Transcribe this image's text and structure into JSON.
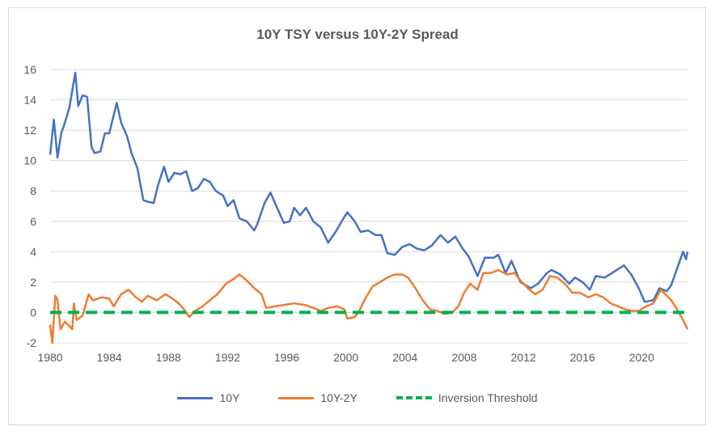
{
  "chart_data": {
    "type": "line",
    "title": "10Y TSY versus 10Y-2Y Spread",
    "xlabel": "",
    "ylabel": "",
    "xlim": [
      1980,
      2023.1
    ],
    "ylim": [
      -2,
      16
    ],
    "yticks": [
      "16",
      "14",
      "12",
      "10",
      "8",
      "6",
      "4",
      "2",
      "0",
      "-2"
    ],
    "xticks": [
      "1980",
      "1984",
      "1988",
      "1992",
      "1996",
      "2000",
      "2004",
      "2008",
      "2012",
      "2016",
      "2020"
    ],
    "grid": true,
    "legend_position": "bottom",
    "series": [
      {
        "name": "10Y",
        "color": "#4472c4",
        "x": [
          1980.0,
          1980.25,
          1980.5,
          1980.75,
          1981.0,
          1981.3,
          1981.7,
          1981.9,
          1982.2,
          1982.5,
          1982.8,
          1983.0,
          1983.4,
          1983.7,
          1984.0,
          1984.5,
          1984.8,
          1985.2,
          1985.5,
          1985.9,
          1986.3,
          1986.6,
          1987.0,
          1987.3,
          1987.7,
          1988.0,
          1988.4,
          1988.8,
          1989.2,
          1989.6,
          1990.0,
          1990.4,
          1990.8,
          1991.2,
          1991.7,
          1992.0,
          1992.4,
          1992.8,
          1993.3,
          1993.8,
          1994.0,
          1994.5,
          1994.9,
          1995.3,
          1995.8,
          1996.2,
          1996.5,
          1996.9,
          1997.3,
          1997.8,
          1998.3,
          1998.8,
          1999.3,
          1999.9,
          2000.1,
          2000.6,
          2001.0,
          2001.5,
          2002.0,
          2002.4,
          2002.8,
          2003.3,
          2003.8,
          2004.3,
          2004.8,
          2005.3,
          2005.8,
          2006.4,
          2006.9,
          2007.4,
          2007.9,
          2008.3,
          2008.9,
          2009.4,
          2010.0,
          2010.3,
          2010.8,
          2011.2,
          2011.8,
          2012.5,
          2013.0,
          2013.6,
          2013.9,
          2014.5,
          2015.1,
          2015.5,
          2016.0,
          2016.5,
          2016.9,
          2017.5,
          2018.0,
          2018.8,
          2019.3,
          2019.8,
          2020.2,
          2020.8,
          2021.2,
          2021.7,
          2022.0,
          2022.4,
          2022.8,
          2023.0,
          2023.1
        ],
        "values": [
          10.4,
          12.7,
          10.2,
          11.8,
          12.5,
          13.5,
          15.8,
          13.6,
          14.3,
          14.2,
          10.9,
          10.5,
          10.6,
          11.8,
          11.8,
          13.8,
          12.5,
          11.6,
          10.5,
          9.5,
          7.4,
          7.3,
          7.2,
          8.4,
          9.6,
          8.6,
          9.2,
          9.1,
          9.3,
          8.0,
          8.2,
          8.8,
          8.6,
          8.0,
          7.7,
          7.0,
          7.4,
          6.2,
          6.0,
          5.4,
          5.8,
          7.2,
          7.9,
          7.0,
          5.9,
          6.0,
          6.9,
          6.4,
          6.9,
          6.0,
          5.6,
          4.6,
          5.3,
          6.3,
          6.6,
          6.0,
          5.3,
          5.4,
          5.1,
          5.1,
          3.9,
          3.8,
          4.3,
          4.5,
          4.2,
          4.1,
          4.4,
          5.1,
          4.6,
          5.0,
          4.2,
          3.7,
          2.4,
          3.6,
          3.6,
          3.8,
          2.6,
          3.4,
          2.0,
          1.6,
          1.9,
          2.6,
          2.8,
          2.5,
          1.9,
          2.3,
          2.0,
          1.5,
          2.4,
          2.3,
          2.6,
          3.1,
          2.5,
          1.6,
          0.7,
          0.8,
          1.6,
          1.4,
          1.8,
          2.9,
          4.0,
          3.5,
          4.0
        ]
      },
      {
        "name": "10Y-2Y",
        "color": "#ed7d31",
        "x": [
          1980.0,
          1980.15,
          1980.35,
          1980.5,
          1980.7,
          1981.0,
          1981.3,
          1981.5,
          1981.6,
          1981.8,
          1982.2,
          1982.6,
          1982.9,
          1983.5,
          1984.0,
          1984.3,
          1984.8,
          1985.3,
          1985.8,
          1986.2,
          1986.6,
          1987.2,
          1987.8,
          1988.3,
          1988.8,
          1989.2,
          1989.4,
          1989.8,
          1990.3,
          1990.8,
          1991.3,
          1991.9,
          1992.4,
          1992.8,
          1993.3,
          1993.8,
          1994.3,
          1994.6,
          1995.2,
          1995.8,
          1996.5,
          1997.2,
          1997.8,
          1998.3,
          1998.8,
          1999.4,
          1999.9,
          2000.1,
          2000.6,
          2000.9,
          2001.3,
          2001.8,
          2002.3,
          2002.8,
          2003.3,
          2003.8,
          2004.2,
          2004.7,
          2005.2,
          2005.7,
          2006.2,
          2006.7,
          2007.2,
          2007.6,
          2008.0,
          2008.4,
          2008.9,
          2009.3,
          2009.8,
          2010.3,
          2010.9,
          2011.4,
          2011.9,
          2012.3,
          2012.8,
          2013.3,
          2013.8,
          2014.3,
          2014.9,
          2015.3,
          2015.8,
          2016.4,
          2016.9,
          2017.4,
          2017.9,
          2018.4,
          2018.9,
          2019.4,
          2019.8,
          2020.3,
          2020.8,
          2021.3,
          2021.6,
          2022.0,
          2022.4,
          2022.8,
          2023.1
        ],
        "values": [
          -0.8,
          -2.0,
          1.1,
          0.8,
          -1.1,
          -0.6,
          -0.9,
          -1.1,
          0.6,
          -0.5,
          -0.2,
          1.2,
          0.8,
          1.0,
          0.9,
          0.4,
          1.2,
          1.5,
          1.0,
          0.7,
          1.1,
          0.8,
          1.2,
          0.9,
          0.5,
          0.0,
          -0.3,
          0.1,
          0.4,
          0.8,
          1.2,
          1.9,
          2.2,
          2.5,
          2.1,
          1.6,
          1.2,
          0.3,
          0.4,
          0.5,
          0.6,
          0.5,
          0.3,
          0.1,
          0.3,
          0.4,
          0.2,
          -0.4,
          -0.3,
          0.1,
          0.9,
          1.7,
          2.0,
          2.3,
          2.5,
          2.5,
          2.3,
          1.6,
          0.8,
          0.2,
          0.1,
          -0.1,
          0.0,
          0.4,
          1.3,
          1.9,
          1.5,
          2.6,
          2.6,
          2.8,
          2.5,
          2.6,
          2.0,
          1.6,
          1.2,
          1.5,
          2.4,
          2.3,
          1.8,
          1.3,
          1.3,
          1.0,
          1.2,
          1.0,
          0.6,
          0.4,
          0.2,
          0.1,
          0.1,
          0.4,
          0.6,
          1.5,
          1.2,
          0.8,
          0.2,
          -0.5,
          -1.1
        ]
      },
      {
        "name": "Inversion Threshold",
        "color": "#00b050",
        "x": [
          1980.0,
          2023.1
        ],
        "values": [
          0,
          0
        ]
      }
    ]
  }
}
